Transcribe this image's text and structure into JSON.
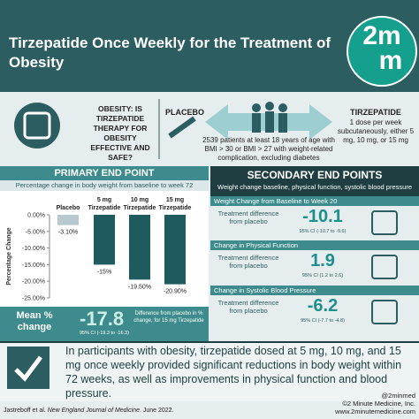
{
  "header": {
    "title": "Tirzepatide Once Weekly for the Treatment of Obesity",
    "logo_top": "2m",
    "logo_bottom": "m"
  },
  "study": {
    "question": "OBESITY: IS TIRZEPATIDE THERAPY FOR OBESITY EFFECTIVE AND SAFE?",
    "placebo": "PLACEBO",
    "drug": "TIRZEPATIDE",
    "drug_detail": "1 dose per week subcutaneously, either 5 mg, 10 mg, or 15 mg",
    "population": "2539 patients at least 18 years of age with BMI > 30 or BMI > 27 with weight-related complication, excluding diabetes"
  },
  "primary": {
    "heading": "PRIMARY END POINT",
    "subtitle": "Percentage change in body weight from baseline to week 72",
    "chart": {
      "type": "bar",
      "y_label": "Percentage Change",
      "categories": [
        "Placebo",
        "5 mg Tirzepatide",
        "10 mg Tirzepatide",
        "15 mg Tirzepatide"
      ],
      "values": [
        -3.1,
        -15,
        -19.5,
        -20.9
      ],
      "value_labels": [
        "-3.10%",
        "-15%",
        "-19.50%",
        "-20.90%"
      ],
      "colors": [
        "#b7c9cf",
        "#1f5a5e",
        "#1f5a5e",
        "#1f5a5e"
      ],
      "ylim": [
        -25,
        0
      ],
      "yticks": [
        {
          "value": 0,
          "label": "0.00%"
        },
        {
          "value": -5,
          "label": "-5.00%"
        },
        {
          "value": -10,
          "label": "-10.00%"
        },
        {
          "value": -15,
          "label": "-15.00%"
        },
        {
          "value": -20,
          "label": "-20.00%"
        },
        {
          "value": -25,
          "label": "-25.00%"
        }
      ]
    },
    "mean_label": "Mean % change",
    "mean_value": "-17.8",
    "mean_note": "Difference from placebo in % change, for 15 mg Tirzepatide",
    "mean_ci": "95% CI (-19.3 to -16.3)"
  },
  "secondary": {
    "heading": "SECONDARY END POINTS",
    "subtitle": "Weight change baseline, physical function, systolic blood pressure",
    "items": [
      {
        "title": "Weight Change from Baseline to Week 20",
        "label": "Treatment difference from placebo",
        "value": "-10.1",
        "ci": "95% CI (-10.7 to -9.6)"
      },
      {
        "title": "Change in Physical Function",
        "label": "Treatment difference from placebo",
        "value": "1.9",
        "ci": "95% CI (1.2 to 2.6)"
      },
      {
        "title": "Change in Systolic Blood Pressure",
        "label": "Treatment difference from placebo",
        "value": "-6.2",
        "ci": "95% CI (-7.7 to -4.8)"
      }
    ]
  },
  "conclusion": "In participants with obesity, tirzepatide dosed at 5 mg, 10 mg, and 15 mg once weekly provided significant reductions in body weight within 72 weeks, as well as improvements in physical function and blood pressure.",
  "footer": {
    "citation_authors": "Jastreboff et al.",
    "citation_journal": "New England Journal of Medicine",
    "citation_date": ". June 2022.",
    "handle": "@2minmed",
    "copyright": "©2 Minute Medicine, Inc.",
    "website": "www.2minutemedicine.com"
  }
}
